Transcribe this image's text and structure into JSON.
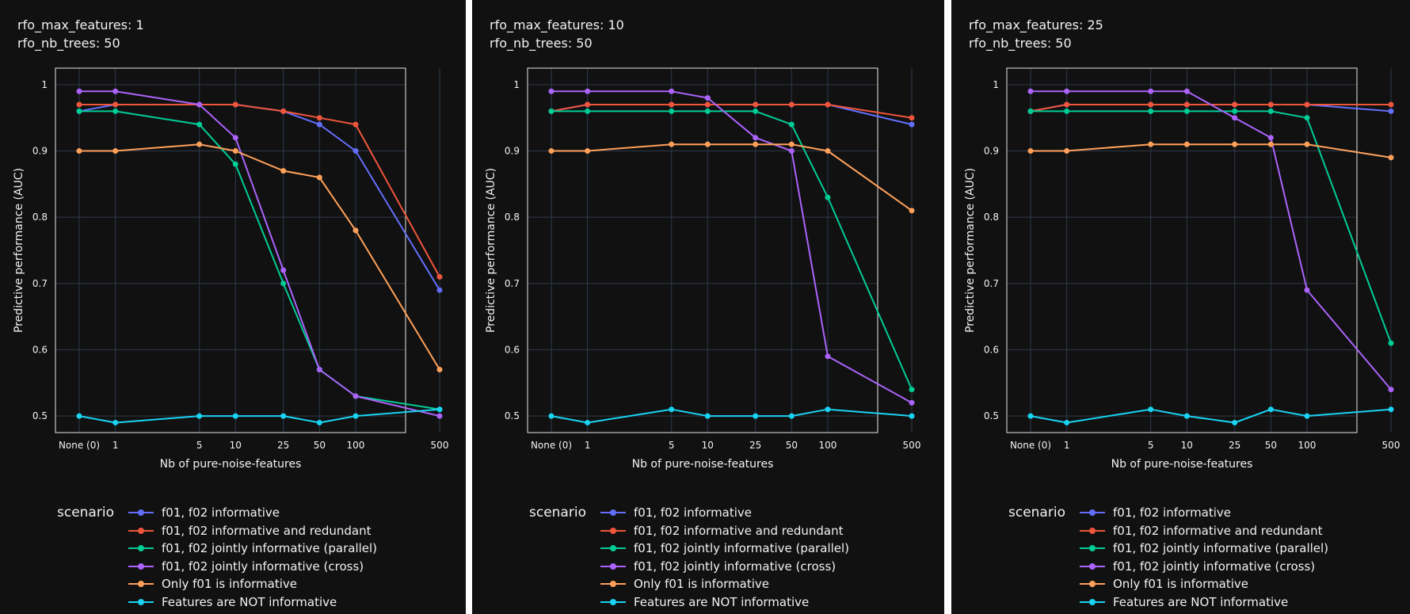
{
  "colors": {
    "background": "#111111",
    "plot_border": "#e8e8e8",
    "grid": "#2e3a4a",
    "text": "#f2f2f2",
    "divider": "#ffffff"
  },
  "legend_title": "scenario",
  "series_styles": [
    {
      "name": "f01, f02 informative",
      "color": "#636efa"
    },
    {
      "name": "f01, f02 informative and redundant",
      "color": "#ef553b"
    },
    {
      "name": "f01, f02 jointly informative (parallel)",
      "color": "#00cc96"
    },
    {
      "name": "f01, f02 jointly informative (cross)",
      "color": "#ab63fa"
    },
    {
      "name": "Only f01 is informative",
      "color": "#ffa15a"
    },
    {
      "name": "Features are NOT informative",
      "color": "#19d3f3"
    }
  ],
  "panels": [
    {
      "header": [
        "rfo_max_features: 1",
        "rfo_nb_trees: 50"
      ]
    },
    {
      "header": [
        "rfo_max_features: 10",
        "rfo_nb_trees: 50"
      ]
    },
    {
      "header": [
        "rfo_max_features: 25",
        "rfo_nb_trees: 50"
      ]
    }
  ],
  "chart_data": [
    {
      "type": "line",
      "xlabel": "Nb of pure-noise-features",
      "ylabel": "Predictive performance (AUC)",
      "x_scale": "log",
      "categories": [
        "None (0)",
        "1",
        "5",
        "10",
        "25",
        "50",
        "100",
        "500"
      ],
      "yticks": [
        0.5,
        0.6,
        0.7,
        0.8,
        0.9,
        1
      ],
      "ytick_labels": [
        "0.5",
        "0.6",
        "0.7",
        "0.8",
        "0.9",
        "1"
      ],
      "ylim": [
        0.475,
        1.025
      ],
      "grid": true,
      "legend_position": "bottom",
      "series": [
        {
          "name": "f01, f02 informative",
          "values": [
            0.96,
            0.97,
            0.97,
            0.97,
            0.96,
            0.94,
            0.9,
            0.69
          ]
        },
        {
          "name": "f01, f02 informative and redundant",
          "values": [
            0.97,
            0.97,
            0.97,
            0.97,
            0.96,
            0.95,
            0.94,
            0.71
          ]
        },
        {
          "name": "f01, f02 jointly informative (parallel)",
          "values": [
            0.96,
            0.96,
            0.94,
            0.88,
            0.7,
            0.57,
            0.53,
            0.51
          ]
        },
        {
          "name": "f01, f02 jointly informative (cross)",
          "values": [
            0.99,
            0.99,
            0.97,
            0.92,
            0.72,
            0.57,
            0.53,
            0.5
          ]
        },
        {
          "name": "Only f01 is informative",
          "values": [
            0.9,
            0.9,
            0.91,
            0.9,
            0.87,
            0.86,
            0.78,
            0.57
          ]
        },
        {
          "name": "Features are NOT informative",
          "values": [
            0.5,
            0.49,
            0.5,
            0.5,
            0.5,
            0.49,
            0.5,
            0.51
          ]
        }
      ]
    },
    {
      "type": "line",
      "xlabel": "Nb of pure-noise-features",
      "ylabel": "Predictive performance (AUC)",
      "x_scale": "log",
      "categories": [
        "None (0)",
        "1",
        "5",
        "10",
        "25",
        "50",
        "100",
        "500"
      ],
      "yticks": [
        0.5,
        0.6,
        0.7,
        0.8,
        0.9,
        1
      ],
      "ytick_labels": [
        "0.5",
        "0.6",
        "0.7",
        "0.8",
        "0.9",
        "1"
      ],
      "ylim": [
        0.475,
        1.025
      ],
      "grid": true,
      "legend_position": "bottom",
      "series": [
        {
          "name": "f01, f02 informative",
          "values": [
            0.96,
            0.97,
            0.97,
            0.97,
            0.97,
            0.97,
            0.97,
            0.94
          ]
        },
        {
          "name": "f01, f02 informative and redundant",
          "values": [
            0.96,
            0.97,
            0.97,
            0.97,
            0.97,
            0.97,
            0.97,
            0.95
          ]
        },
        {
          "name": "f01, f02 jointly informative (parallel)",
          "values": [
            0.96,
            0.96,
            0.96,
            0.96,
            0.96,
            0.94,
            0.83,
            0.54
          ]
        },
        {
          "name": "f01, f02 jointly informative (cross)",
          "values": [
            0.99,
            0.99,
            0.99,
            0.98,
            0.92,
            0.9,
            0.59,
            0.52
          ]
        },
        {
          "name": "Only f01 is informative",
          "values": [
            0.9,
            0.9,
            0.91,
            0.91,
            0.91,
            0.91,
            0.9,
            0.81
          ]
        },
        {
          "name": "Features are NOT informative",
          "values": [
            0.5,
            0.49,
            0.51,
            0.5,
            0.5,
            0.5,
            0.51,
            0.5
          ]
        }
      ]
    },
    {
      "type": "line",
      "xlabel": "Nb of pure-noise-features",
      "ylabel": "Predictive performance (AUC)",
      "x_scale": "log",
      "categories": [
        "None (0)",
        "1",
        "5",
        "10",
        "25",
        "50",
        "100",
        "500"
      ],
      "yticks": [
        0.5,
        0.6,
        0.7,
        0.8,
        0.9,
        1
      ],
      "ytick_labels": [
        "0.5",
        "0.6",
        "0.7",
        "0.8",
        "0.9",
        "1"
      ],
      "ylim": [
        0.475,
        1.025
      ],
      "grid": true,
      "legend_position": "bottom",
      "series": [
        {
          "name": "f01, f02 informative",
          "values": [
            0.96,
            0.97,
            0.97,
            0.97,
            0.97,
            0.97,
            0.97,
            0.96
          ]
        },
        {
          "name": "f01, f02 informative and redundant",
          "values": [
            0.96,
            0.97,
            0.97,
            0.97,
            0.97,
            0.97,
            0.97,
            0.97
          ]
        },
        {
          "name": "f01, f02 jointly informative (parallel)",
          "values": [
            0.96,
            0.96,
            0.96,
            0.96,
            0.96,
            0.96,
            0.95,
            0.61
          ]
        },
        {
          "name": "f01, f02 jointly informative (cross)",
          "values": [
            0.99,
            0.99,
            0.99,
            0.99,
            0.95,
            0.92,
            0.69,
            0.54
          ]
        },
        {
          "name": "Only f01 is informative",
          "values": [
            0.9,
            0.9,
            0.91,
            0.91,
            0.91,
            0.91,
            0.91,
            0.89
          ]
        },
        {
          "name": "Features are NOT informative",
          "values": [
            0.5,
            0.49,
            0.51,
            0.5,
            0.49,
            0.51,
            0.5,
            0.51
          ]
        }
      ]
    }
  ]
}
